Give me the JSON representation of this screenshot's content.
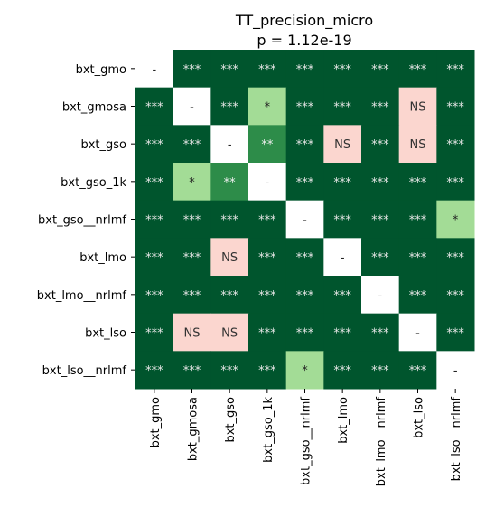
{
  "chart_data": {
    "type": "heatmap",
    "title": "TT_precision_micro",
    "subtitle": "p = 1.12e-19",
    "categories": [
      "bxt_gmo",
      "bxt_gmosa",
      "bxt_gso",
      "bxt_gso_1k",
      "bxt_gso__nrlmf",
      "bxt_lmo",
      "bxt_lmo__nrlmf",
      "bxt_lso",
      "bxt_lso__nrlmf"
    ],
    "cells": [
      [
        "-",
        "***",
        "***",
        "***",
        "***",
        "***",
        "***",
        "***",
        "***"
      ],
      [
        "***",
        "-",
        "***",
        "*",
        "***",
        "***",
        "***",
        "NS",
        "***"
      ],
      [
        "***",
        "***",
        "-",
        "**",
        "***",
        "NS",
        "***",
        "NS",
        "***"
      ],
      [
        "***",
        "*",
        "**",
        "-",
        "***",
        "***",
        "***",
        "***",
        "***"
      ],
      [
        "***",
        "***",
        "***",
        "***",
        "-",
        "***",
        "***",
        "***",
        "*"
      ],
      [
        "***",
        "***",
        "NS",
        "***",
        "***",
        "-",
        "***",
        "***",
        "***"
      ],
      [
        "***",
        "***",
        "***",
        "***",
        "***",
        "***",
        "-",
        "***",
        "***"
      ],
      [
        "***",
        "NS",
        "NS",
        "***",
        "***",
        "***",
        "***",
        "-",
        "***"
      ],
      [
        "***",
        "***",
        "***",
        "***",
        "*",
        "***",
        "***",
        "***",
        "-"
      ]
    ],
    "colors": {
      "***": "#00552d",
      "**": "#2d8c49",
      "*": "#a3dc96",
      "NS": "#fbd6cf",
      "-": "#ffffff"
    },
    "text_colors": {
      "***": "#e8e8e8",
      "**": "#f0f0f0",
      "*": "#222222",
      "NS": "#333333",
      "-": "#222222"
    },
    "grid": false,
    "legend": "none"
  }
}
